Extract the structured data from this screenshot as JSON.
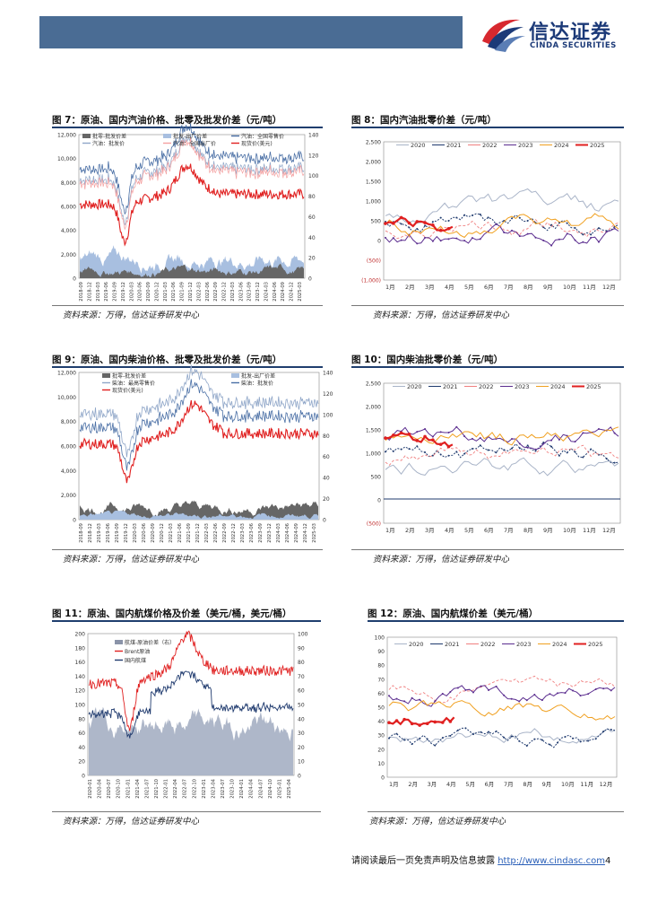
{
  "brand": {
    "name_cn": "信达证券",
    "name_en": "CINDA SECURITIES",
    "primary_color": "#1c3a78",
    "accent_color": "#d7282f"
  },
  "colors": {
    "y2020": "#a9b4c8",
    "y2021": "#1f3a6e",
    "y2022": "#f08080",
    "y2023": "#5b2d8f",
    "y2024": "#f0a020",
    "y2025": "#e02020",
    "crude": "#e02020",
    "bar_dark": "#666",
    "bar_light": "#a8bfe0",
    "line_blue": "#4a6fa5"
  },
  "fig7": {
    "title": "图 7：原油、国内汽油价格、批零及批发价差（元/吨）",
    "source": "资料来源：万得，信达证券研发中心",
    "legend": [
      "批零-批发价差",
      "批发-出厂价差",
      "汽油：批发价",
      "汽油：全国零售价",
      "汽油：全国出厂价",
      "现货价(美元)"
    ],
    "y_left": [
      "12,000",
      "10,000",
      "8,000",
      "6,000",
      "4,000",
      "2,000",
      "0"
    ],
    "y_right": [
      "140",
      "120",
      "100",
      "80",
      "60",
      "40",
      "20",
      "0"
    ],
    "x_labels": [
      "2018-09",
      "2018-12",
      "2019-03",
      "2019-06",
      "2019-09",
      "2019-12",
      "2020-03",
      "2020-06",
      "2020-09",
      "2020-12",
      "2021-03",
      "2021-06",
      "2021-09",
      "2021-12",
      "2022-03",
      "2022-06",
      "2022-09",
      "2022-12",
      "2023-03",
      "2023-06",
      "2023-09",
      "2023-12",
      "2024-03",
      "2024-06",
      "2024-09",
      "2024-12",
      "2025-03"
    ]
  },
  "fig8": {
    "title": "图 8：国内汽油批零价差（元/吨）",
    "source": "资料来源：万得，信达证券研发中心",
    "legend": [
      "2020",
      "2021",
      "2022",
      "2023",
      "2024",
      "2025"
    ],
    "y_labels": [
      "2,500",
      "2,000",
      "1,500",
      "1,000",
      "500",
      "0",
      "(500)",
      "(1,000)"
    ],
    "x_labels": [
      "1月",
      "2月",
      "3月",
      "4月",
      "5月",
      "6月",
      "7月",
      "8月",
      "9月",
      "10月",
      "11月",
      "12月"
    ]
  },
  "fig9": {
    "title": "图 9：原油、国内柴油价格、批零及批发价差（元/吨）",
    "source": "资料来源：万得，信达证券研发中心",
    "legend": [
      "批零-批发价差",
      "批发-出厂价差",
      "柴油：最高零售价",
      "柴油：批发价",
      "现货价(美元)"
    ],
    "y_left": [
      "12,000",
      "10,000",
      "8,000",
      "6,000",
      "4,000",
      "2,000",
      "0"
    ],
    "y_right": [
      "140",
      "120",
      "100",
      "80",
      "60",
      "40",
      "20",
      "0"
    ],
    "x_labels": [
      "2018-09",
      "2018-12",
      "2019-03",
      "2019-06",
      "2019-09",
      "2019-12",
      "2020-03",
      "2020-06",
      "2020-09",
      "2020-12",
      "2021-03",
      "2021-06",
      "2021-09",
      "2021-12",
      "2022-03",
      "2022-06",
      "2022-09",
      "2022-12",
      "2023-03",
      "2023-06",
      "2023-09",
      "2023-12",
      "2024-03",
      "2024-06",
      "2024-09",
      "2024-12",
      "2025-03"
    ]
  },
  "fig10": {
    "title": "图 10：国内柴油批零价差（元/吨）",
    "source": "资料来源：万得，信达证券研发中心",
    "legend": [
      "2020",
      "2021",
      "2022",
      "2023",
      "2024",
      "2025"
    ],
    "y_labels": [
      "2,500",
      "2,000",
      "1,500",
      "1,000",
      "500",
      "0",
      "(500)"
    ],
    "x_labels": [
      "1月",
      "2月",
      "3月",
      "4月",
      "5月",
      "6月",
      "7月",
      "8月",
      "9月",
      "10月",
      "11月",
      "12月"
    ]
  },
  "fig11": {
    "title": "图 11：原油、国内航煤价格及价差（美元/桶，美元/桶）",
    "source": "资料来源：万得，信达证券研发中心",
    "legend": [
      "航煤-原油价差（右）",
      "Brent原油",
      "国内航煤"
    ],
    "y_left": [
      "200",
      "180",
      "160",
      "140",
      "120",
      "100",
      "80",
      "60",
      "40",
      "20",
      "0"
    ],
    "y_right": [
      "100",
      "90",
      "80",
      "70",
      "60",
      "50",
      "40",
      "30",
      "20",
      "10",
      "0"
    ],
    "x_labels": [
      "2020-01",
      "2020-04",
      "2020-07",
      "2020-10",
      "2021-01",
      "2021-04",
      "2021-07",
      "2021-10",
      "2022-01",
      "2022-04",
      "2022-07",
      "2022-10",
      "2023-01",
      "2023-04",
      "2023-07",
      "2023-10",
      "2024-01",
      "2024-04",
      "2024-07",
      "2024-10",
      "2025-01",
      "2025-04"
    ]
  },
  "fig12": {
    "title": "图 12：原油、国内航煤价差（美元/桶）",
    "source": "资料来源：万得，信达证券研发中心",
    "legend": [
      "2020",
      "2021",
      "2022",
      "2023",
      "2024",
      "2025"
    ],
    "y_labels": [
      "100",
      "90",
      "80",
      "70",
      "60",
      "50",
      "40",
      "30",
      "20",
      "10",
      "0"
    ],
    "x_labels": [
      "1月",
      "2月",
      "3月",
      "4月",
      "5月",
      "6月",
      "7月",
      "8月",
      "9月",
      "10月",
      "11月",
      "12月"
    ]
  },
  "footer": {
    "text": "请阅读最后一页免责声明及信息披露 ",
    "link": "http://www.cindasc.com",
    "page": "4"
  }
}
